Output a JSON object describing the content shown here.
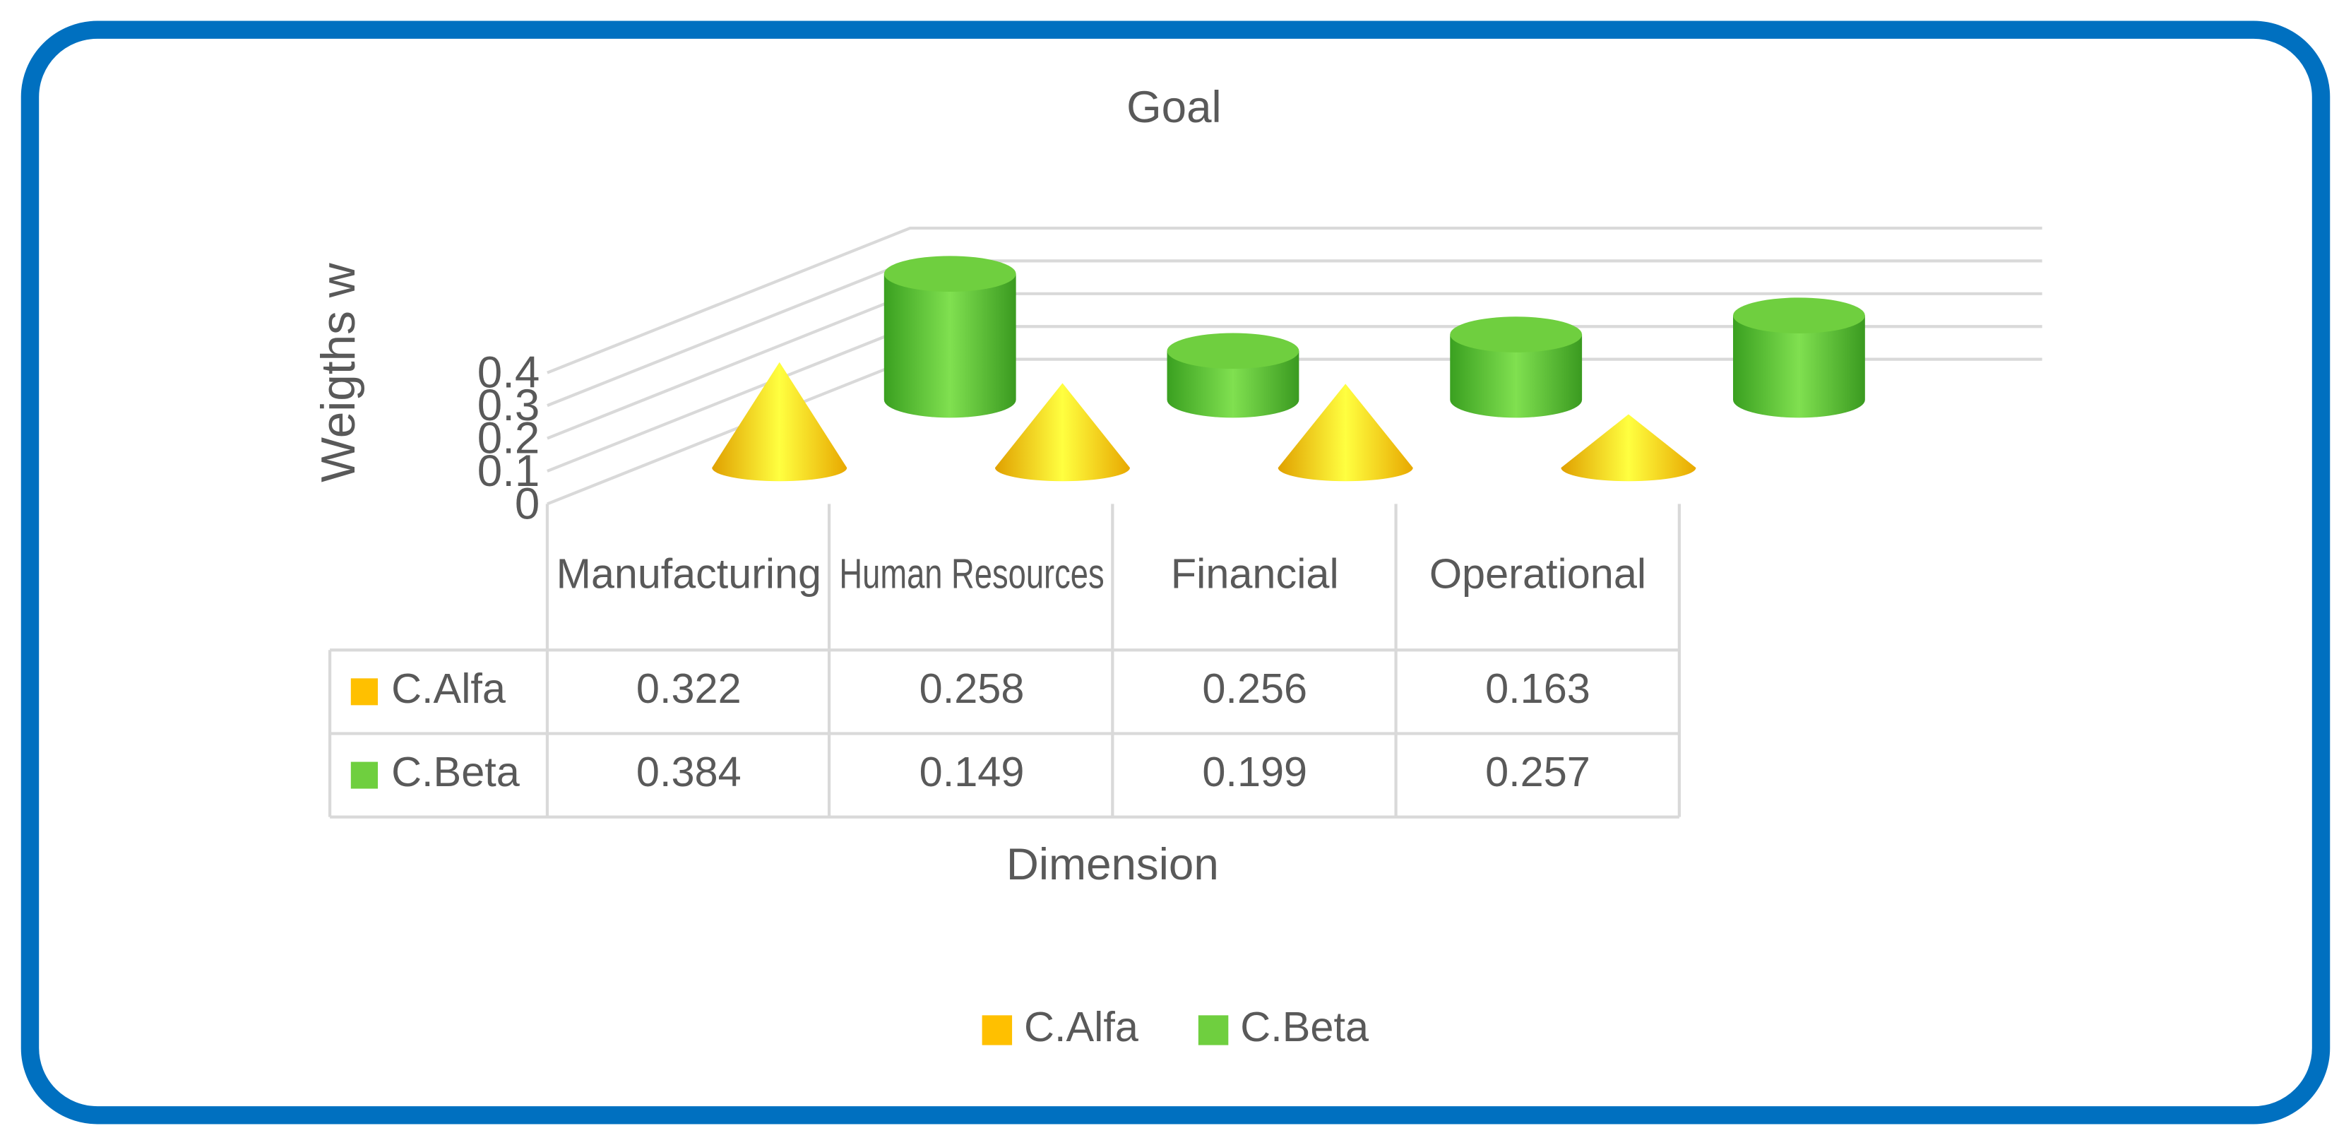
{
  "chart_data": {
    "type": "bar3d",
    "title": "Goal",
    "y_label": "Weigths w",
    "x_label": "Dimension",
    "categories": [
      "Manufacturing",
      "Human Resources",
      "Financial",
      "Operational"
    ],
    "series": [
      {
        "name": "C.Alfa",
        "color": "#ffc000",
        "shape": "cone",
        "values": [
          0.322,
          0.258,
          0.256,
          0.163
        ]
      },
      {
        "name": "C.Beta",
        "color": "#6fcf3f",
        "shape": "cylinder",
        "values": [
          0.384,
          0.149,
          0.199,
          0.257
        ]
      }
    ],
    "ylim": [
      0,
      0.4
    ],
    "yticks": [
      0,
      0.1,
      0.2,
      0.3,
      0.4
    ],
    "grid": true
  }
}
